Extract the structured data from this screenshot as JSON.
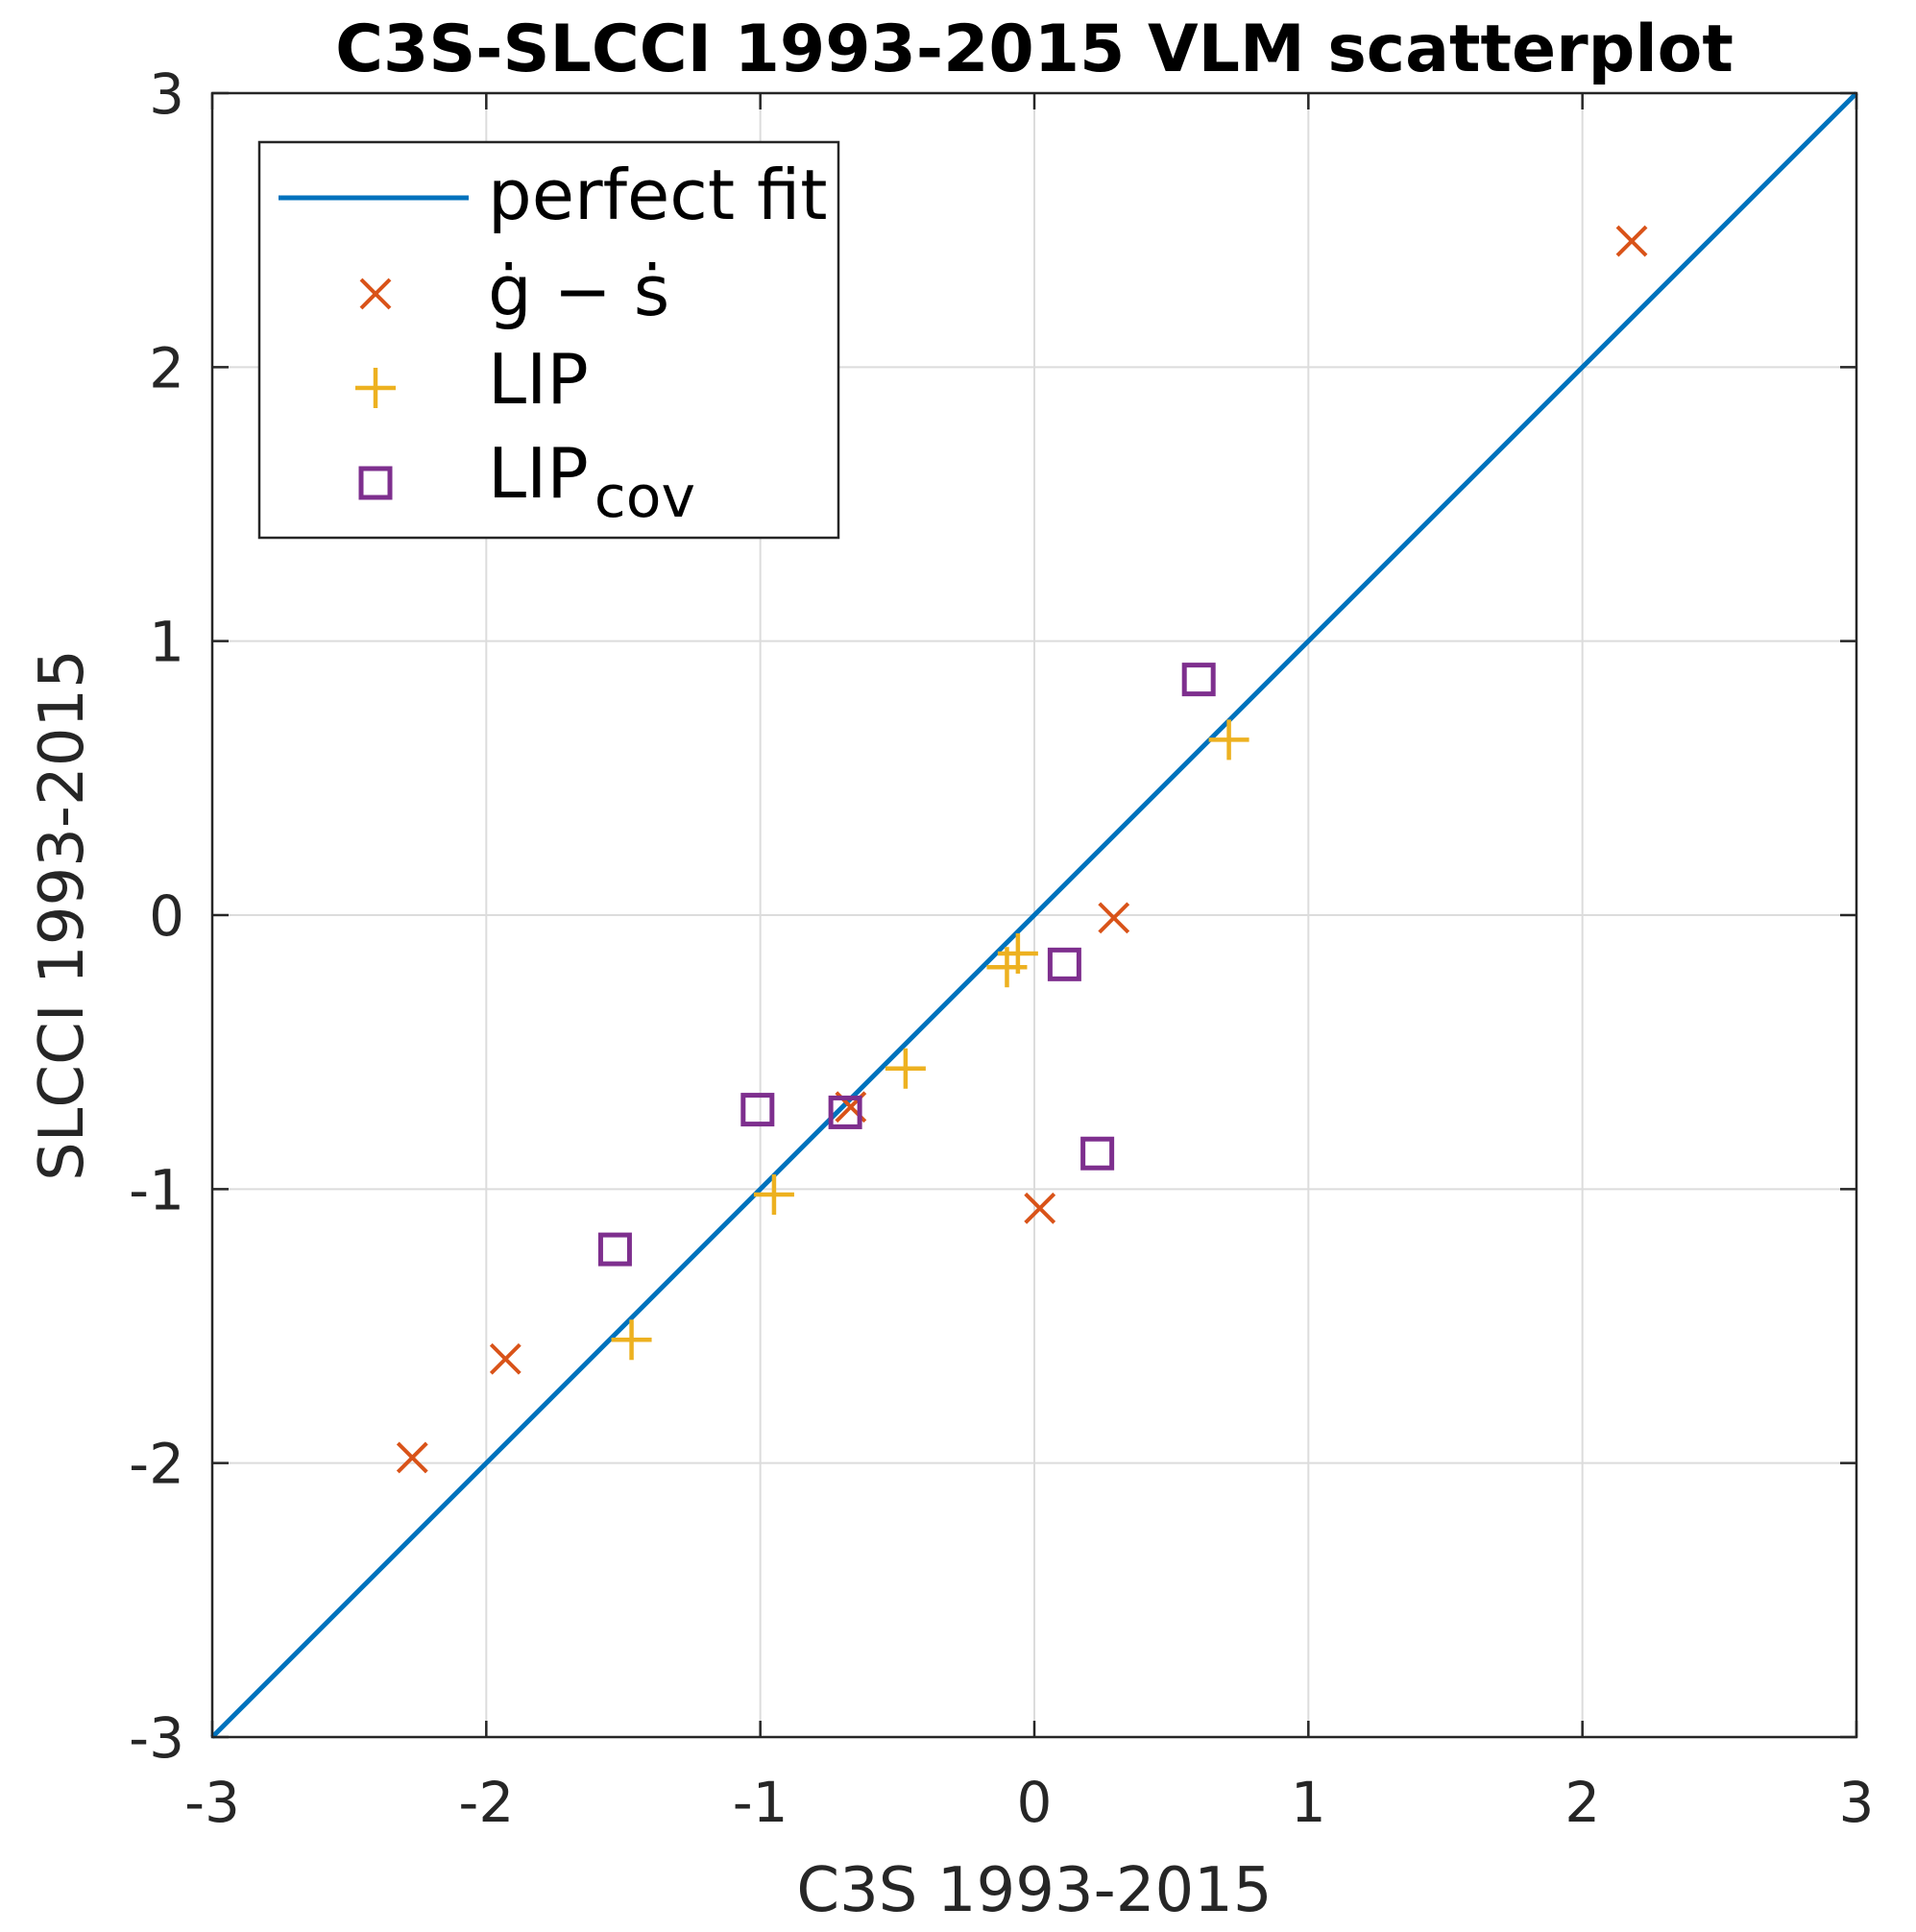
{
  "chart_data": {
    "type": "scatter",
    "title": "C3S-SLCCI 1993-2015 VLM scatterplot",
    "xlabel": "C3S 1993-2015",
    "ylabel": "SLCCI 1993-2015",
    "xlim": [
      -3,
      3
    ],
    "ylim": [
      -3,
      3
    ],
    "grid": true,
    "legend_position": "top-left",
    "x_ticks": [
      "-3",
      "-2",
      "-1",
      "0",
      "1",
      "2",
      "3"
    ],
    "y_ticks": [
      "-3",
      "-2",
      "-1",
      "0",
      "1",
      "2",
      "3"
    ],
    "reference_line": {
      "name": "perfect fit",
      "points": [
        [
          -3,
          -3
        ],
        [
          3,
          3
        ]
      ],
      "color": "#0072BD"
    },
    "series": [
      {
        "name": "ġ − ṡ",
        "marker": "x",
        "color": "#D95319",
        "points": [
          [
            -2.27,
            -1.98
          ],
          [
            -1.93,
            -1.62
          ],
          [
            -0.67,
            -0.7
          ],
          [
            0.02,
            -1.07
          ],
          [
            0.29,
            -0.01
          ],
          [
            2.18,
            2.46
          ]
        ]
      },
      {
        "name": "LIP",
        "marker": "+",
        "color": "#EDB120",
        "points": [
          [
            -1.47,
            -1.55
          ],
          [
            -0.95,
            -1.02
          ],
          [
            -0.47,
            -0.56
          ],
          [
            -0.1,
            -0.19
          ],
          [
            -0.06,
            -0.14
          ],
          [
            0.71,
            0.64
          ]
        ]
      },
      {
        "name": "LIP",
        "name_subscript": "cov",
        "marker": "square",
        "color": "#7E2F8E",
        "points": [
          [
            -1.53,
            -1.22
          ],
          [
            -1.01,
            -0.71
          ],
          [
            -0.69,
            -0.72
          ],
          [
            0.11,
            -0.18
          ],
          [
            0.23,
            -0.87
          ],
          [
            0.6,
            0.86
          ]
        ]
      }
    ]
  }
}
